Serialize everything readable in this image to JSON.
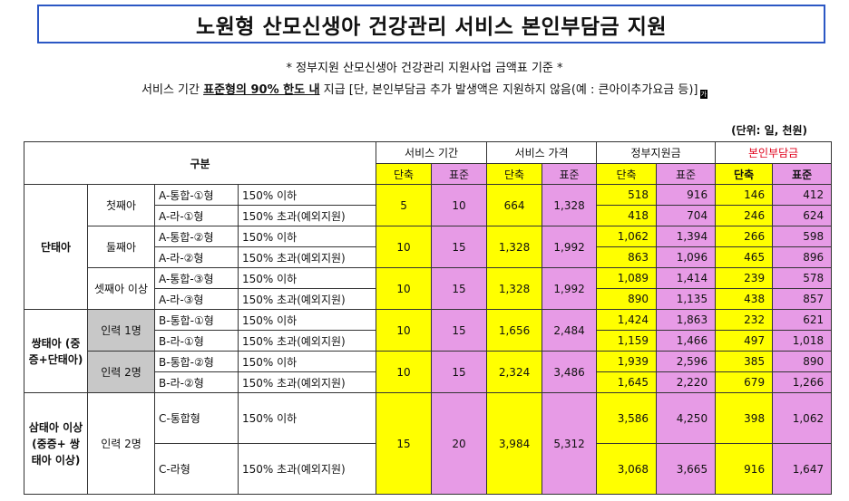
{
  "title": "노원형 산모신생아 건강관리 서비스 본인부담금 지원",
  "subtitle1": "* 정부지원 산모신생아 건강관리 지원사업 금액표 기준 *",
  "subtitle2": {
    "pre": "서비스 기간 ",
    "bold": "표준형의 90% 한도 내",
    "post": " 지급 [단, 본인부담금 추가 발생액은 지원하지 않음(예 : 큰아이추가요금 등)]",
    "tiny": "가"
  },
  "unit_note": "(단위: 일, 천원)",
  "table": {
    "header": {
      "category": "구분",
      "period": "서비스 기간",
      "price": "서비스 가격",
      "gov": "정부지원금",
      "self": "본인부담금",
      "short": "단축",
      "standard": "표준"
    },
    "groups": [
      {
        "label": "단태아",
        "subgroups": [
          {
            "label": "첫째아",
            "period": [
              "5",
              "10"
            ],
            "price": [
              "664",
              "1,328"
            ],
            "rows": [
              {
                "type": "A-통합-①형",
                "income": "150% 이하",
                "gov": [
                  "518",
                  "916"
                ],
                "self": [
                  "146",
                  "412"
                ]
              },
              {
                "type": "A-라-①형",
                "income": "150% 초과(예외지원)",
                "gov": [
                  "418",
                  "704"
                ],
                "self": [
                  "246",
                  "624"
                ]
              }
            ]
          },
          {
            "label": "둘째아",
            "period": [
              "10",
              "15"
            ],
            "price": [
              "1,328",
              "1,992"
            ],
            "rows": [
              {
                "type": "A-통합-②형",
                "income": "150% 이하",
                "gov": [
                  "1,062",
                  "1,394"
                ],
                "self": [
                  "266",
                  "598"
                ]
              },
              {
                "type": "A-라-②형",
                "income": "150% 초과(예외지원)",
                "gov": [
                  "863",
                  "1,096"
                ],
                "self": [
                  "465",
                  "896"
                ]
              }
            ]
          },
          {
            "label": "셋째아 이상",
            "period": [
              "10",
              "15"
            ],
            "price": [
              "1,328",
              "1,992"
            ],
            "rows": [
              {
                "type": "A-통합-③형",
                "income": "150% 이하",
                "gov": [
                  "1,089",
                  "1,414"
                ],
                "self": [
                  "239",
                  "578"
                ]
              },
              {
                "type": "A-라-③형",
                "income": "150% 초과(예외지원)",
                "gov": [
                  "890",
                  "1,135"
                ],
                "self": [
                  "438",
                  "857"
                ]
              }
            ]
          }
        ]
      },
      {
        "label": "쌍태아 (중증+단태아)",
        "subgroups": [
          {
            "label": "인력 1명",
            "period": [
              "10",
              "15"
            ],
            "price": [
              "1,656",
              "2,484"
            ],
            "rows": [
              {
                "type": "B-통합-①형",
                "income": "150% 이하",
                "gov": [
                  "1,424",
                  "1,863"
                ],
                "self": [
                  "232",
                  "621"
                ]
              },
              {
                "type": "B-라-①형",
                "income": "150% 초과(예외지원)",
                "gov": [
                  "1,159",
                  "1,466"
                ],
                "self": [
                  "497",
                  "1,018"
                ]
              }
            ]
          },
          {
            "label": "인력 2명",
            "period": [
              "10",
              "15"
            ],
            "price": [
              "2,324",
              "3,486"
            ],
            "rows": [
              {
                "type": "B-통합-②형",
                "income": "150% 이하",
                "gov": [
                  "1,939",
                  "2,596"
                ],
                "self": [
                  "385",
                  "890"
                ]
              },
              {
                "type": "B-라-②형",
                "income": "150% 초과(예외지원)",
                "gov": [
                  "1,645",
                  "2,220"
                ],
                "self": [
                  "679",
                  "1,266"
                ]
              }
            ]
          }
        ]
      },
      {
        "label": "삼태아 이상 (중증+ 쌍태아 이상)",
        "subgroups": [
          {
            "label": "인력 2명",
            "period": [
              "15",
              "20"
            ],
            "price": [
              "3,984",
              "5,312"
            ],
            "rows": [
              {
                "type": "C-통합형",
                "income": "150% 이하",
                "gov": [
                  "3,586",
                  "4,250"
                ],
                "self": [
                  "398",
                  "1,062"
                ]
              },
              {
                "type": "C-라형",
                "income": "150% 초과(예외지원)",
                "gov": [
                  "3,068",
                  "3,665"
                ],
                "self": [
                  "916",
                  "1,647"
                ]
              }
            ]
          }
        ]
      }
    ]
  }
}
